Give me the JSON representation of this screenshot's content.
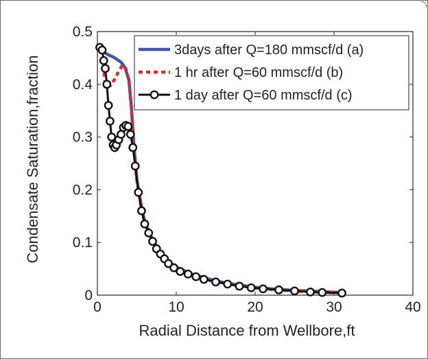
{
  "chart_data": {
    "type": "line",
    "title": "",
    "xlabel": "Radial Distance from Wellbore,ft",
    "ylabel": "Condensate Saturation,fraction",
    "xlim": [
      0,
      40
    ],
    "ylim": [
      0,
      0.5
    ],
    "xticks": [
      0,
      10,
      20,
      30,
      40
    ],
    "xtick_labels": [
      "0",
      "10",
      "20",
      "30",
      "40"
    ],
    "yticks": [
      0,
      0.1,
      0.2,
      0.3,
      0.4,
      0.5
    ],
    "ytick_labels": [
      "0",
      "0.1",
      "0.2",
      "0.3",
      "0.4",
      "0.5"
    ],
    "grid": false,
    "legend_position": "top-right",
    "series": [
      {
        "name": "3days after Q=180 mmscf/d (a)",
        "color": "#3a56b0",
        "style": "solid",
        "marker": "none",
        "x": [
          0.5,
          0.9,
          1.5,
          2.0,
          2.5,
          3.0,
          3.5,
          4.0,
          4.3,
          4.6,
          5.0,
          5.5,
          6.0,
          7.0,
          8.0,
          9.0,
          10.0,
          12.0,
          14.0,
          16.0,
          18.0,
          20.0,
          22.0,
          25.0,
          28.0,
          31.0
        ],
        "y": [
          0.47,
          0.46,
          0.455,
          0.452,
          0.447,
          0.442,
          0.432,
          0.408,
          0.36,
          0.29,
          0.22,
          0.175,
          0.14,
          0.105,
          0.08,
          0.064,
          0.053,
          0.04,
          0.031,
          0.024,
          0.019,
          0.015,
          0.012,
          0.009,
          0.007,
          0.005
        ]
      },
      {
        "name": "1 hr after Q=60 mmscf/d (b)",
        "color": "#e8262a",
        "style": "dotted",
        "marker": "none",
        "x": [
          0.5,
          0.8,
          1.0,
          1.3,
          1.7,
          2.2,
          2.7,
          3.2,
          3.6,
          4.0,
          4.3,
          4.6,
          5.0,
          5.5,
          6.0,
          7.0,
          8.0,
          9.0,
          10.0,
          12.0,
          14.0,
          16.0,
          18.0,
          20.0,
          22.0,
          25.0,
          28.0,
          31.0
        ],
        "y": [
          0.465,
          0.43,
          0.4,
          0.395,
          0.398,
          0.41,
          0.425,
          0.437,
          0.43,
          0.405,
          0.355,
          0.285,
          0.218,
          0.172,
          0.138,
          0.103,
          0.078,
          0.062,
          0.051,
          0.038,
          0.03,
          0.023,
          0.018,
          0.014,
          0.011,
          0.008,
          0.006,
          0.004
        ]
      },
      {
        "name": "1 day after Q=60 mmscf/d (c)",
        "color": "#111111",
        "style": "solid",
        "marker": "circle",
        "x": [
          0.3,
          0.6,
          0.8,
          1.0,
          1.2,
          1.4,
          1.6,
          1.8,
          2.0,
          2.2,
          2.4,
          2.7,
          3.0,
          3.3,
          3.6,
          3.9,
          4.2,
          4.5,
          4.8,
          5.2,
          5.6,
          6.0,
          6.5,
          7.0,
          7.5,
          8.0,
          8.5,
          9.0,
          9.7,
          10.5,
          11.5,
          12.5,
          13.5,
          15.0,
          16.5,
          18.0,
          19.5,
          21.0,
          23.0,
          25.0,
          27.0,
          28.5,
          31.0
        ],
        "y": [
          0.47,
          0.465,
          0.445,
          0.43,
          0.4,
          0.36,
          0.33,
          0.3,
          0.285,
          0.28,
          0.285,
          0.295,
          0.305,
          0.318,
          0.322,
          0.32,
          0.305,
          0.28,
          0.245,
          0.195,
          0.16,
          0.135,
          0.118,
          0.102,
          0.088,
          0.078,
          0.069,
          0.06,
          0.052,
          0.045,
          0.04,
          0.035,
          0.03,
          0.025,
          0.021,
          0.017,
          0.014,
          0.012,
          0.01,
          0.008,
          0.006,
          0.005,
          0.004
        ]
      }
    ]
  }
}
